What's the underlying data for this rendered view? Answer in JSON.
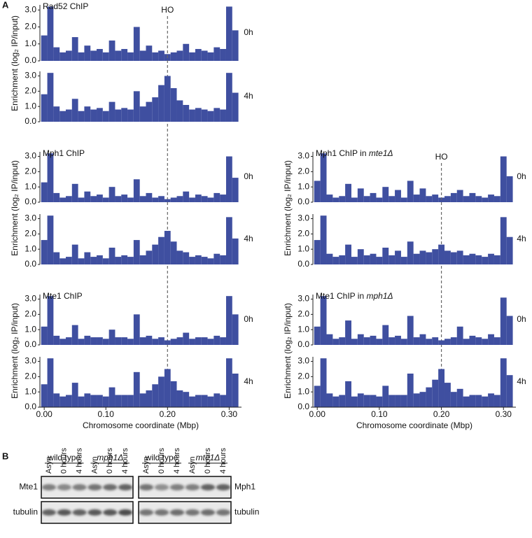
{
  "panel_a_label": "A",
  "chart_data": [
    {
      "type": "bar",
      "title": "Rad52 ChIP",
      "time": "0h",
      "ylabel": "Enrichment (log₂ IP/input)",
      "annotation": {
        "text": "HO",
        "x": 0.2
      },
      "color": "#3f4fa0",
      "x": [
        0,
        0.01,
        0.02,
        0.03,
        0.04,
        0.05,
        0.06,
        0.07,
        0.08,
        0.09,
        0.1,
        0.11,
        0.12,
        0.13,
        0.14,
        0.15,
        0.16,
        0.17,
        0.18,
        0.19,
        0.2,
        0.21,
        0.22,
        0.23,
        0.24,
        0.25,
        0.26,
        0.27,
        0.28,
        0.29,
        0.3,
        0.31
      ],
      "values": [
        1.5,
        3.2,
        0.8,
        0.5,
        0.6,
        1.4,
        0.5,
        0.9,
        0.6,
        0.7,
        0.5,
        1.2,
        0.6,
        0.7,
        0.5,
        2.0,
        0.6,
        0.9,
        0.5,
        0.6,
        0.4,
        0.5,
        0.6,
        1.0,
        0.5,
        0.7,
        0.6,
        0.5,
        0.8,
        0.7,
        3.2,
        1.8
      ],
      "xlim": [
        -0.007,
        0.32
      ],
      "ylim": [
        0,
        3.3
      ],
      "yticks": [
        {
          "value": 0,
          "label": "0.0"
        },
        {
          "value": 1,
          "label": "1.0"
        },
        {
          "value": 2,
          "label": "2.0"
        },
        {
          "value": 3,
          "label": "3.0"
        }
      ]
    },
    {
      "type": "bar",
      "time": "4h",
      "color": "#3f4fa0",
      "x": [
        0,
        0.01,
        0.02,
        0.03,
        0.04,
        0.05,
        0.06,
        0.07,
        0.08,
        0.09,
        0.1,
        0.11,
        0.12,
        0.13,
        0.14,
        0.15,
        0.16,
        0.17,
        0.18,
        0.19,
        0.2,
        0.21,
        0.22,
        0.23,
        0.24,
        0.25,
        0.26,
        0.27,
        0.28,
        0.29,
        0.3,
        0.31
      ],
      "values": [
        1.8,
        3.2,
        1.0,
        0.7,
        0.8,
        1.5,
        0.7,
        1.0,
        0.8,
        0.9,
        0.7,
        1.3,
        0.8,
        0.9,
        0.8,
        2.0,
        1.0,
        1.3,
        1.6,
        2.4,
        3.0,
        2.2,
        1.4,
        1.1,
        0.8,
        0.9,
        0.8,
        0.7,
        0.9,
        0.8,
        3.2,
        1.9
      ],
      "xlim": [
        -0.007,
        0.32
      ],
      "ylim": [
        0,
        3.3
      ],
      "yticks": [
        {
          "value": 0,
          "label": "0.0"
        },
        {
          "value": 1,
          "label": "1.0"
        },
        {
          "value": 2,
          "label": "2.0"
        },
        {
          "value": 3,
          "label": "3.0"
        }
      ]
    },
    {
      "type": "bar",
      "title": "Mph1 ChIP",
      "time": "0h",
      "ylabel": "Enrichment (log₂ IP/input)",
      "color": "#3f4fa0",
      "x": [
        0,
        0.01,
        0.02,
        0.03,
        0.04,
        0.05,
        0.06,
        0.07,
        0.08,
        0.09,
        0.1,
        0.11,
        0.12,
        0.13,
        0.14,
        0.15,
        0.16,
        0.17,
        0.18,
        0.19,
        0.2,
        0.21,
        0.22,
        0.23,
        0.24,
        0.25,
        0.26,
        0.27,
        0.28,
        0.29,
        0.3,
        0.31
      ],
      "values": [
        1.3,
        3.2,
        0.6,
        0.3,
        0.4,
        1.2,
        0.3,
        0.7,
        0.4,
        0.5,
        0.3,
        1.0,
        0.4,
        0.5,
        0.3,
        1.5,
        0.4,
        0.6,
        0.3,
        0.4,
        0.2,
        0.3,
        0.4,
        0.7,
        0.3,
        0.5,
        0.4,
        0.3,
        0.6,
        0.5,
        3.0,
        1.6
      ],
      "xlim": [
        -0.007,
        0.32
      ],
      "ylim": [
        0,
        3.3
      ],
      "yticks": [
        {
          "value": 0,
          "label": "0.0"
        },
        {
          "value": 1,
          "label": "1.0"
        },
        {
          "value": 2,
          "label": "2.0"
        },
        {
          "value": 3,
          "label": "3.0"
        }
      ]
    },
    {
      "type": "bar",
      "time": "4h",
      "color": "#3f4fa0",
      "x": [
        0,
        0.01,
        0.02,
        0.03,
        0.04,
        0.05,
        0.06,
        0.07,
        0.08,
        0.09,
        0.1,
        0.11,
        0.12,
        0.13,
        0.14,
        0.15,
        0.16,
        0.17,
        0.18,
        0.19,
        0.2,
        0.21,
        0.22,
        0.23,
        0.24,
        0.25,
        0.26,
        0.27,
        0.28,
        0.29,
        0.3,
        0.31
      ],
      "values": [
        1.6,
        3.2,
        0.8,
        0.4,
        0.5,
        1.3,
        0.4,
        0.8,
        0.5,
        0.6,
        0.4,
        1.1,
        0.5,
        0.6,
        0.5,
        1.6,
        0.6,
        0.9,
        1.3,
        1.8,
        2.2,
        1.5,
        0.9,
        0.8,
        0.5,
        0.6,
        0.5,
        0.4,
        0.7,
        0.6,
        3.1,
        1.7
      ],
      "xlim": [
        -0.007,
        0.32
      ],
      "ylim": [
        0,
        3.3
      ],
      "yticks": [
        {
          "value": 0,
          "label": "0.0"
        },
        {
          "value": 1,
          "label": "1.0"
        },
        {
          "value": 2,
          "label": "2.0"
        },
        {
          "value": 3,
          "label": "3.0"
        }
      ]
    },
    {
      "type": "bar",
      "title": "Mte1 ChIP",
      "time": "0h",
      "ylabel": "Enrichment (log₂ IP/input)",
      "color": "#3f4fa0",
      "x": [
        0,
        0.01,
        0.02,
        0.03,
        0.04,
        0.05,
        0.06,
        0.07,
        0.08,
        0.09,
        0.1,
        0.11,
        0.12,
        0.13,
        0.14,
        0.15,
        0.16,
        0.17,
        0.18,
        0.19,
        0.2,
        0.21,
        0.22,
        0.23,
        0.24,
        0.25,
        0.26,
        0.27,
        0.28,
        0.29,
        0.3,
        0.31
      ],
      "values": [
        1.2,
        3.2,
        0.6,
        0.4,
        0.5,
        1.3,
        0.4,
        0.6,
        0.5,
        0.5,
        0.4,
        1.0,
        0.5,
        0.5,
        0.4,
        2.0,
        0.5,
        0.6,
        0.4,
        0.5,
        0.3,
        0.4,
        0.5,
        0.8,
        0.4,
        0.5,
        0.5,
        0.4,
        0.6,
        0.5,
        3.2,
        2.0
      ],
      "xlim": [
        -0.007,
        0.32
      ],
      "ylim": [
        0,
        3.3
      ],
      "yticks": [
        {
          "value": 0,
          "label": "0.0"
        },
        {
          "value": 1,
          "label": "1.0"
        },
        {
          "value": 2,
          "label": "2.0"
        },
        {
          "value": 3,
          "label": "3.0"
        }
      ]
    },
    {
      "type": "bar",
      "time": "4h",
      "xlabel": "Chromosome coordinate (Mbp)",
      "color": "#3f4fa0",
      "x": [
        0,
        0.01,
        0.02,
        0.03,
        0.04,
        0.05,
        0.06,
        0.07,
        0.08,
        0.09,
        0.1,
        0.11,
        0.12,
        0.13,
        0.14,
        0.15,
        0.16,
        0.17,
        0.18,
        0.19,
        0.2,
        0.21,
        0.22,
        0.23,
        0.24,
        0.25,
        0.26,
        0.27,
        0.28,
        0.29,
        0.3,
        0.31
      ],
      "values": [
        1.5,
        3.2,
        0.9,
        0.7,
        0.8,
        1.6,
        0.7,
        0.9,
        0.8,
        0.8,
        0.7,
        1.3,
        0.8,
        0.8,
        0.8,
        2.3,
        0.9,
        1.1,
        1.5,
        2.0,
        2.5,
        1.7,
        1.1,
        1.0,
        0.7,
        0.8,
        0.8,
        0.7,
        0.9,
        0.8,
        3.2,
        2.2
      ],
      "xlim": [
        -0.007,
        0.32
      ],
      "ylim": [
        0,
        3.3
      ],
      "yticks": [
        {
          "value": 0,
          "label": "0.0"
        },
        {
          "value": 1,
          "label": "1.0"
        },
        {
          "value": 2,
          "label": "2.0"
        },
        {
          "value": 3,
          "label": "3.0"
        }
      ],
      "xticks": [
        {
          "value": 0,
          "label": "0.00"
        },
        {
          "value": 0.1,
          "label": "0.10"
        },
        {
          "value": 0.2,
          "label": "0.20"
        },
        {
          "value": 0.3,
          "label": "0.30"
        }
      ]
    },
    {
      "type": "bar",
      "title": "Mph1 ChIP in",
      "title_genotype": "mte1Δ",
      "time": "0h",
      "ylabel": "Enrichment (log₂ IP/input)",
      "annotation": {
        "text": "HO",
        "x": 0.2
      },
      "color": "#3f4fa0",
      "x": [
        0,
        0.01,
        0.02,
        0.03,
        0.04,
        0.05,
        0.06,
        0.07,
        0.08,
        0.09,
        0.1,
        0.11,
        0.12,
        0.13,
        0.14,
        0.15,
        0.16,
        0.17,
        0.18,
        0.19,
        0.2,
        0.21,
        0.22,
        0.23,
        0.24,
        0.25,
        0.26,
        0.27,
        0.28,
        0.29,
        0.3,
        0.31
      ],
      "values": [
        1.4,
        3.2,
        0.5,
        0.3,
        0.4,
        1.2,
        0.3,
        0.9,
        0.4,
        0.6,
        0.3,
        1.0,
        0.4,
        0.8,
        0.3,
        1.4,
        0.5,
        0.9,
        0.4,
        0.5,
        0.3,
        0.4,
        0.6,
        0.8,
        0.4,
        0.6,
        0.4,
        0.3,
        0.5,
        0.4,
        3.0,
        1.7
      ],
      "xlim": [
        -0.007,
        0.32
      ],
      "ylim": [
        0,
        3.3
      ],
      "yticks": [
        {
          "value": 0,
          "label": "0.0"
        },
        {
          "value": 1,
          "label": "1.0"
        },
        {
          "value": 2,
          "label": "2.0"
        },
        {
          "value": 3,
          "label": "3.0"
        }
      ]
    },
    {
      "type": "bar",
      "time": "4h",
      "color": "#3f4fa0",
      "x": [
        0,
        0.01,
        0.02,
        0.03,
        0.04,
        0.05,
        0.06,
        0.07,
        0.08,
        0.09,
        0.1,
        0.11,
        0.12,
        0.13,
        0.14,
        0.15,
        0.16,
        0.17,
        0.18,
        0.19,
        0.2,
        0.21,
        0.22,
        0.23,
        0.24,
        0.25,
        0.26,
        0.27,
        0.28,
        0.29,
        0.3,
        0.31
      ],
      "values": [
        1.6,
        3.2,
        0.7,
        0.5,
        0.6,
        1.3,
        0.5,
        1.0,
        0.6,
        0.7,
        0.5,
        1.1,
        0.6,
        0.9,
        0.5,
        1.5,
        0.7,
        0.9,
        0.8,
        1.0,
        1.3,
        0.9,
        0.8,
        0.9,
        0.6,
        0.7,
        0.6,
        0.5,
        0.7,
        0.6,
        3.1,
        1.8
      ],
      "xlim": [
        -0.007,
        0.32
      ],
      "ylim": [
        0,
        3.3
      ],
      "yticks": [
        {
          "value": 0,
          "label": "0.0"
        },
        {
          "value": 1,
          "label": "1.0"
        },
        {
          "value": 2,
          "label": "2.0"
        },
        {
          "value": 3,
          "label": "3.0"
        }
      ]
    },
    {
      "type": "bar",
      "title": "Mte1 ChIP in",
      "title_genotype": "mph1Δ",
      "time": "0h",
      "ylabel": "Enrichment (log₂ IP/input)",
      "color": "#3f4fa0",
      "x": [
        0,
        0.01,
        0.02,
        0.03,
        0.04,
        0.05,
        0.06,
        0.07,
        0.08,
        0.09,
        0.1,
        0.11,
        0.12,
        0.13,
        0.14,
        0.15,
        0.16,
        0.17,
        0.18,
        0.19,
        0.2,
        0.21,
        0.22,
        0.23,
        0.24,
        0.25,
        0.26,
        0.27,
        0.28,
        0.29,
        0.3,
        0.31
      ],
      "values": [
        1.2,
        3.2,
        0.7,
        0.4,
        0.5,
        1.6,
        0.4,
        0.7,
        0.5,
        0.6,
        0.4,
        1.3,
        0.5,
        0.6,
        0.4,
        1.9,
        0.5,
        0.7,
        0.4,
        0.5,
        0.3,
        0.4,
        0.5,
        1.2,
        0.4,
        0.6,
        0.5,
        0.4,
        0.7,
        0.5,
        3.1,
        1.9
      ],
      "xlim": [
        -0.007,
        0.32
      ],
      "ylim": [
        0,
        3.3
      ],
      "yticks": [
        {
          "value": 0,
          "label": "0.0"
        },
        {
          "value": 1,
          "label": "1.0"
        },
        {
          "value": 2,
          "label": "2.0"
        },
        {
          "value": 3,
          "label": "3.0"
        }
      ]
    },
    {
      "type": "bar",
      "time": "4h",
      "xlabel": "Chromosome coordinate (Mbp)",
      "color": "#3f4fa0",
      "x": [
        0,
        0.01,
        0.02,
        0.03,
        0.04,
        0.05,
        0.06,
        0.07,
        0.08,
        0.09,
        0.1,
        0.11,
        0.12,
        0.13,
        0.14,
        0.15,
        0.16,
        0.17,
        0.18,
        0.19,
        0.2,
        0.21,
        0.22,
        0.23,
        0.24,
        0.25,
        0.26,
        0.27,
        0.28,
        0.29,
        0.3,
        0.31
      ],
      "values": [
        1.4,
        3.2,
        0.9,
        0.7,
        0.8,
        1.7,
        0.7,
        0.9,
        0.8,
        0.8,
        0.7,
        1.4,
        0.8,
        0.8,
        0.8,
        2.2,
        0.9,
        1.0,
        1.3,
        1.8,
        2.5,
        1.6,
        1.0,
        1.2,
        0.7,
        0.8,
        0.8,
        0.7,
        0.9,
        0.8,
        3.2,
        2.1
      ],
      "xlim": [
        -0.007,
        0.32
      ],
      "ylim": [
        0,
        3.3
      ],
      "yticks": [
        {
          "value": 0,
          "label": "0.0"
        },
        {
          "value": 1,
          "label": "1.0"
        },
        {
          "value": 2,
          "label": "2.0"
        },
        {
          "value": 3,
          "label": "3.0"
        }
      ],
      "xticks": [
        {
          "value": 0,
          "label": "0.00"
        },
        {
          "value": 0.1,
          "label": "0.10"
        },
        {
          "value": 0.2,
          "label": "0.20"
        },
        {
          "value": 0.3,
          "label": "0.30"
        }
      ]
    }
  ],
  "panel_b": {
    "label": "B",
    "blots": [
      {
        "groups": [
          "wild type",
          "mph1Δ"
        ],
        "lanes": [
          "Asyn",
          "0 hours",
          "4 hours",
          "Asyn",
          "0 hours",
          "4 hours"
        ],
        "rows": [
          "Mte1",
          "tubulin"
        ]
      },
      {
        "groups": [
          "wild type",
          "mte1Δ"
        ],
        "lanes": [
          "Asyn",
          "0 hours",
          "4 hours",
          "Asyn",
          "0 hours",
          "4 hours"
        ],
        "rows": [
          "Mph1",
          "tubulin"
        ]
      }
    ]
  }
}
